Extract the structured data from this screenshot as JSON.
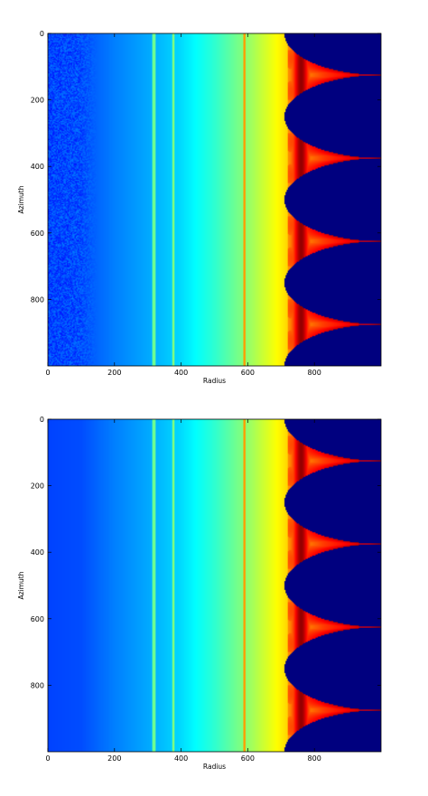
{
  "chart_data": [
    {
      "type": "heatmap",
      "title": "",
      "xlabel": "Radius",
      "ylabel": "Azimuth",
      "xlim": [
        0,
        1000
      ],
      "ylim": [
        1000,
        0
      ],
      "x_ticks": [
        0,
        200,
        400,
        600,
        800
      ],
      "y_ticks": [
        0,
        200,
        400,
        600,
        800
      ],
      "x_tick_labels": [
        "0",
        "200",
        "400",
        "600",
        "800"
      ],
      "y_tick_labels": [
        "0",
        "200",
        "400",
        "600",
        "800"
      ],
      "colormap": "jet",
      "noisy": true,
      "noise_inner_radius": 90,
      "background_gradient": {
        "radius": [
          0,
          100,
          200,
          300,
          400,
          500,
          600,
          700,
          760,
          830,
          900,
          1000
        ],
        "level": [
          0.19,
          0.2,
          0.25,
          0.29,
          0.34,
          0.42,
          0.52,
          0.64,
          0.72,
          0.82,
          0.88,
          0.9
        ]
      },
      "rings": [
        {
          "radius": 318,
          "level": 0.42
        },
        {
          "radius": 377,
          "level": 0.44
        },
        {
          "radius": 591,
          "level": 0.66
        }
      ],
      "masked_region": {
        "shape": "periodic lobes",
        "lobe_centers_azimuth": [
          0,
          250,
          500,
          750,
          1000
        ],
        "radius_at_lobe_center": 710,
        "cusp_azimuth": [
          125,
          375,
          625,
          875
        ],
        "cusp_radius": 1000
      },
      "hot_band": {
        "radius_center": 760,
        "level_min": 0.72,
        "level_max": 0.98
      },
      "masked_color": "#00007f"
    },
    {
      "type": "heatmap",
      "title": "",
      "xlabel": "Radius",
      "ylabel": "Azimuth",
      "xlim": [
        0,
        1000
      ],
      "ylim": [
        1000,
        0
      ],
      "x_ticks": [
        0,
        200,
        400,
        600,
        800
      ],
      "y_ticks": [
        0,
        200,
        400,
        600,
        800
      ],
      "x_tick_labels": [
        "0",
        "200",
        "400",
        "600",
        "800"
      ],
      "y_tick_labels": [
        "0",
        "200",
        "400",
        "600",
        "800"
      ],
      "colormap": "jet",
      "noisy": false,
      "noise_inner_radius": 0,
      "background_gradient": {
        "radius": [
          0,
          100,
          200,
          300,
          400,
          500,
          600,
          700,
          760,
          830,
          900,
          1000
        ],
        "level": [
          0.19,
          0.2,
          0.25,
          0.29,
          0.34,
          0.42,
          0.52,
          0.64,
          0.72,
          0.82,
          0.88,
          0.9
        ]
      },
      "rings": [
        {
          "radius": 318,
          "level": 0.42
        },
        {
          "radius": 377,
          "level": 0.44
        },
        {
          "radius": 591,
          "level": 0.66
        }
      ],
      "masked_region": {
        "shape": "periodic lobes",
        "lobe_centers_azimuth": [
          0,
          250,
          500,
          750,
          1000
        ],
        "radius_at_lobe_center": 710,
        "cusp_azimuth": [
          125,
          375,
          625,
          875
        ],
        "cusp_radius": 1000
      },
      "hot_band": {
        "radius_center": 760,
        "level_min": 0.72,
        "level_max": 0.98
      },
      "masked_color": "#00007f"
    }
  ]
}
